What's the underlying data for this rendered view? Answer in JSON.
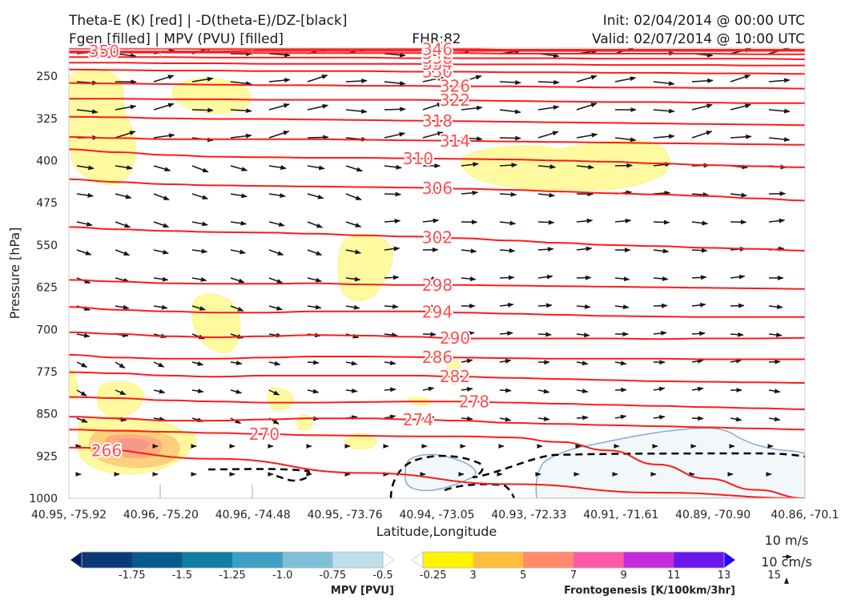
{
  "titles": {
    "left_line1": "Theta-E (K) [red] | -D(theta-E)/DZ-[black]",
    "left_line2": "Fgen [filled] | MPV (PVU) [filled]",
    "center": "FHR:82",
    "right_line1": "Init: 02/04/2014 @ 00:00 UTC",
    "right_line2": "Valid: 02/07/2014 @ 10:00 UTC"
  },
  "chart_data": {
    "type": "cross-section",
    "xlabel": "Latitude,Longitude",
    "ylabel": "Pressure [hPa]",
    "x_ticks": [
      "40.95, -75.92",
      "40.96, -75.20",
      "40.96, -74.48",
      "40.95, -73.76",
      "40.94, -73.05",
      "40.93, -72.33",
      "40.91, -71.61",
      "40.89, -70.90",
      "40.86, -70.1"
    ],
    "y_ticks": [
      250,
      325,
      400,
      475,
      550,
      625,
      700,
      775,
      850,
      925,
      1000
    ],
    "ylim": [
      1000,
      200
    ],
    "theta_e_contours": [
      {
        "label": "266",
        "p": [
          910,
          930,
          955,
          975,
          990,
          1000
        ]
      },
      {
        "label": "270",
        "p": [
          878,
          880,
          882,
          884,
          886,
          888,
          889,
          890,
          890,
          892,
          900,
          915,
          940,
          965,
          985,
          1000
        ]
      },
      {
        "label": "274",
        "p": [
          855,
          858,
          862,
          862,
          860,
          858,
          858,
          860,
          862,
          866,
          868,
          870,
          872,
          874,
          876,
          878
        ]
      },
      {
        "label": "278",
        "p": [
          820,
          822,
          826,
          828,
          830,
          830,
          829,
          828,
          828,
          830,
          832,
          834,
          836,
          838,
          840,
          842
        ]
      },
      {
        "label": "282",
        "p": [
          776,
          778,
          782,
          784,
          782,
          782,
          782,
          782,
          784,
          786,
          788,
          790,
          792,
          793,
          794,
          795
        ]
      },
      {
        "label": "286",
        "p": [
          745,
          750,
          752,
          752,
          750,
          748,
          748,
          749,
          750,
          751,
          752,
          752,
          752,
          753,
          753,
          753
        ]
      },
      {
        "label": "290",
        "p": [
          705,
          708,
          712,
          714,
          712,
          710,
          711,
          713,
          716,
          716,
          716,
          716,
          717,
          716,
          716,
          715
        ]
      },
      {
        "label": "294",
        "p": [
          660,
          665,
          668,
          670,
          670,
          668,
          668,
          668,
          670,
          672,
          674,
          676,
          677,
          678,
          678,
          678
        ]
      },
      {
        "label": "298",
        "p": [
          612,
          615,
          618,
          619,
          619,
          618,
          620,
          621,
          621,
          622,
          623,
          624,
          625,
          626,
          627,
          628
        ]
      },
      {
        "label": "302",
        "p": [
          518,
          522,
          525,
          527,
          528,
          530,
          533,
          535,
          538,
          542,
          546,
          550,
          552,
          555,
          557,
          560
        ]
      },
      {
        "label": "306",
        "p": [
          433,
          438,
          442,
          444,
          445,
          446,
          447,
          448,
          450,
          452,
          455,
          458,
          460,
          463,
          467,
          471
        ]
      },
      {
        "label": "310",
        "p": [
          380,
          385,
          390,
          393,
          394,
          395,
          395,
          396,
          397,
          398,
          400,
          402,
          405,
          408,
          410,
          412
        ]
      },
      {
        "label": "314",
        "p": [
          358,
          360,
          362,
          362,
          362,
          362,
          363,
          364,
          365,
          366,
          367,
          368,
          369,
          370,
          371,
          372
        ]
      },
      {
        "label": "318",
        "p": [
          322,
          323,
          325,
          326,
          326,
          327,
          328,
          329,
          330,
          331,
          332,
          333,
          334,
          335,
          336,
          337
        ]
      },
      {
        "label": "322",
        "p": [
          290,
          290,
          291,
          291,
          292,
          292,
          292,
          292,
          293,
          294,
          295,
          296,
          296,
          297,
          298,
          298
        ]
      },
      {
        "label": "326",
        "p": [
          262,
          263,
          264,
          265,
          266,
          266,
          267,
          267,
          268,
          268,
          269,
          270,
          270,
          271,
          271,
          272
        ]
      },
      {
        "label": "330",
        "p": [
          238,
          239,
          240,
          240,
          241,
          241,
          241,
          242,
          242,
          243,
          243,
          244,
          244,
          245,
          245,
          246
        ]
      },
      {
        "label": "334",
        "p": [
          226,
          226,
          227,
          227,
          228,
          228,
          228,
          228,
          229,
          229,
          229,
          230,
          230,
          230,
          231,
          231
        ]
      },
      {
        "label": "338",
        "p": [
          216,
          216,
          216,
          217,
          217,
          217,
          217,
          218,
          218,
          218,
          218,
          219,
          219,
          219,
          219,
          220
        ]
      },
      {
        "label": "342",
        "p": [
          208,
          208,
          208,
          208,
          209,
          209,
          209,
          209,
          209,
          210,
          210,
          210,
          210,
          210,
          211,
          211
        ]
      },
      {
        "label": "346",
        "p": [
          201,
          201,
          201,
          202,
          202,
          202,
          202,
          202,
          202,
          203,
          203,
          203,
          203,
          203,
          203,
          203
        ]
      },
      {
        "label": "350",
        "p": [
          206,
          206,
          206,
          206,
          205,
          205,
          205,
          205,
          205,
          205,
          205,
          205,
          205,
          205,
          205,
          205
        ]
      }
    ]
  },
  "colorbars": {
    "mpv": {
      "title": "MPV [PVU]",
      "ticks": [
        "-1.75",
        "-1.5",
        "-1.25",
        "-1.0",
        "-0.75",
        "-0.5",
        "-0.25"
      ],
      "colors": [
        "#08185e",
        "#0c3a78",
        "#075b8c",
        "#0f7ea0",
        "#3d9fc1",
        "#7fbfd6",
        "#bedfe9",
        "#ffffff"
      ]
    },
    "fgen": {
      "title": "Frontogenesis [K/100km/3hr]",
      "ticks": [
        "3",
        "5",
        "7",
        "9",
        "11",
        "13",
        "15"
      ],
      "colors": [
        "#ffffff",
        "#fff200",
        "#ffbf3c",
        "#ff8a6b",
        "#ff5aa8",
        "#c42bdc",
        "#6a16ee",
        "#2a06ff"
      ]
    }
  },
  "vector_key": {
    "label1": "10 m/s",
    "label2": "10 cm/s"
  }
}
